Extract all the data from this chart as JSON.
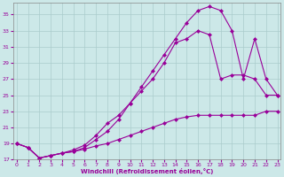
{
  "xlabel": "Windchill (Refroidissement éolien,°C)",
  "bg_color": "#cce8e8",
  "line_color": "#990099",
  "grid_color": "#aacccc",
  "line1_x": [
    0,
    1,
    2,
    3,
    4,
    5,
    6,
    7,
    8,
    9,
    10,
    11,
    12,
    13,
    14,
    15,
    16,
    17,
    18,
    19,
    20,
    21,
    22,
    23
  ],
  "line1_y": [
    19,
    18.5,
    17.2,
    17.5,
    17.8,
    18.0,
    18.3,
    18.7,
    19.0,
    19.5,
    20.0,
    20.5,
    21.0,
    21.5,
    22.0,
    22.3,
    22.5,
    22.5,
    22.5,
    22.5,
    22.5,
    22.5,
    23.0,
    23.0
  ],
  "line2_x": [
    0,
    1,
    2,
    3,
    4,
    5,
    6,
    7,
    8,
    9,
    10,
    11,
    12,
    13,
    14,
    15,
    16,
    17,
    18,
    19,
    20,
    21,
    22,
    23
  ],
  "line2_y": [
    19,
    18.5,
    17.2,
    17.5,
    17.8,
    18.2,
    18.8,
    20.0,
    21.5,
    22.5,
    24.0,
    25.5,
    27.0,
    29.0,
    31.5,
    32.0,
    33.0,
    32.5,
    27.0,
    27.5,
    27.5,
    27.0,
    25.0,
    25.0
  ],
  "line3_x": [
    0,
    1,
    2,
    3,
    4,
    5,
    6,
    7,
    8,
    9,
    10,
    11,
    12,
    13,
    14,
    15,
    16,
    17,
    18,
    19,
    20,
    21,
    22,
    23
  ],
  "line3_y": [
    19,
    18.5,
    17.2,
    17.5,
    17.8,
    18.0,
    18.5,
    19.5,
    20.5,
    22.0,
    24.0,
    26.0,
    28.0,
    30.0,
    32.0,
    34.0,
    35.5,
    36.0,
    35.5,
    33.0,
    27.0,
    32.0,
    27.0,
    25.0
  ],
  "xlim": [
    0,
    23
  ],
  "ylim": [
    17,
    36
  ],
  "yticks": [
    17,
    19,
    21,
    23,
    25,
    27,
    29,
    31,
    33,
    35
  ],
  "xticks": [
    0,
    1,
    2,
    3,
    4,
    5,
    6,
    7,
    8,
    9,
    10,
    11,
    12,
    13,
    14,
    15,
    16,
    17,
    18,
    19,
    20,
    21,
    22,
    23
  ]
}
